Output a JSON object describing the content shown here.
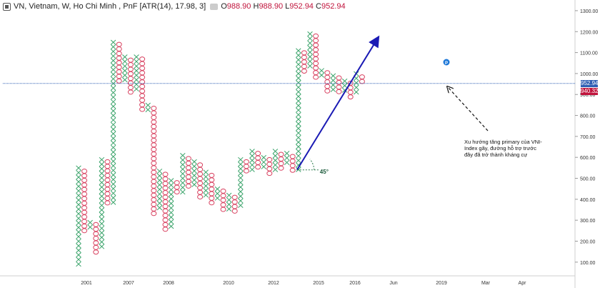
{
  "legend": {
    "symbol": "VN, Vietnam, W, Ho Chi Minh , PnF [ATR(14), 17.98, 3]",
    "open_label": "O",
    "open": "988.90",
    "high_label": "H",
    "high": "988.90",
    "low_label": "L",
    "low": "952.94",
    "close_label": "C",
    "close": "952.94"
  },
  "price_tags": {
    "last": "952.94",
    "line": "940.32"
  },
  "annotation": {
    "text_lines": [
      "Xu hướng tăng primary của VNI-",
      "Index gãy, đường hỗ trợ trước",
      "đây đã trở thành kháng cự"
    ],
    "angle_label": "45°",
    "marker_label": "P"
  },
  "colors": {
    "x_col": "#3aa36a",
    "o_col": "#d8405f",
    "trend": "#1a1ab4",
    "hline": "#2f5fb3",
    "tag_last": "#2f5fb3",
    "tag_line": "#c0143c"
  },
  "chart_data": {
    "type": "point-and-figure",
    "y_axis": {
      "ticks": [
        100,
        200,
        300,
        400,
        500,
        600,
        700,
        800,
        900,
        1000,
        1100,
        1200,
        1300
      ],
      "range": [
        55,
        1310
      ]
    },
    "x_axis": {
      "ticks": [
        "2001",
        "2007",
        "2008",
        "2010",
        "2012",
        "2015",
        "2016",
        "Jun",
        "2019",
        "Mar",
        "Apr"
      ]
    },
    "box_size": 17.98,
    "columns": [
      {
        "t": "X",
        "lo": 85,
        "hi": 560
      },
      {
        "t": "O",
        "lo": 240,
        "hi": 545
      },
      {
        "t": "X",
        "lo": 250,
        "hi": 300
      },
      {
        "t": "O",
        "lo": 140,
        "hi": 290
      },
      {
        "t": "X",
        "lo": 155,
        "hi": 600
      },
      {
        "t": "O",
        "lo": 375,
        "hi": 590
      },
      {
        "t": "X",
        "lo": 385,
        "hi": 1160
      },
      {
        "t": "O",
        "lo": 945,
        "hi": 1150
      },
      {
        "t": "X",
        "lo": 955,
        "hi": 1090
      },
      {
        "t": "O",
        "lo": 910,
        "hi": 1075
      },
      {
        "t": "X",
        "lo": 920,
        "hi": 1090
      },
      {
        "t": "O",
        "lo": 815,
        "hi": 1080
      },
      {
        "t": "X",
        "lo": 825,
        "hi": 860
      },
      {
        "t": "O",
        "lo": 330,
        "hi": 845
      },
      {
        "t": "X",
        "lo": 340,
        "hi": 545
      },
      {
        "t": "O",
        "lo": 250,
        "hi": 530
      },
      {
        "t": "X",
        "lo": 260,
        "hi": 500
      },
      {
        "t": "O",
        "lo": 420,
        "hi": 490
      },
      {
        "t": "X",
        "lo": 430,
        "hi": 620
      },
      {
        "t": "O",
        "lo": 455,
        "hi": 605
      },
      {
        "t": "X",
        "lo": 465,
        "hi": 590
      },
      {
        "t": "O",
        "lo": 390,
        "hi": 575
      },
      {
        "t": "X",
        "lo": 400,
        "hi": 540
      },
      {
        "t": "O",
        "lo": 380,
        "hi": 525
      },
      {
        "t": "X",
        "lo": 390,
        "hi": 460
      },
      {
        "t": "O",
        "lo": 340,
        "hi": 450
      },
      {
        "t": "X",
        "lo": 350,
        "hi": 430
      },
      {
        "t": "O",
        "lo": 340,
        "hi": 420
      },
      {
        "t": "X",
        "lo": 350,
        "hi": 600
      },
      {
        "t": "O",
        "lo": 530,
        "hi": 590
      },
      {
        "t": "X",
        "lo": 540,
        "hi": 640
      },
      {
        "t": "O",
        "lo": 540,
        "hi": 630
      },
      {
        "t": "X",
        "lo": 550,
        "hi": 610
      },
      {
        "t": "O",
        "lo": 520,
        "hi": 600
      },
      {
        "t": "X",
        "lo": 530,
        "hi": 640
      },
      {
        "t": "O",
        "lo": 545,
        "hi": 625
      },
      {
        "t": "X",
        "lo": 555,
        "hi": 630
      },
      {
        "t": "O",
        "lo": 520,
        "hi": 615
      },
      {
        "t": "X",
        "lo": 530,
        "hi": 1120
      },
      {
        "t": "O",
        "lo": 1010,
        "hi": 1110
      },
      {
        "t": "X",
        "lo": 1020,
        "hi": 1200
      },
      {
        "t": "O",
        "lo": 980,
        "hi": 1190
      },
      {
        "t": "X",
        "lo": 990,
        "hi": 1025
      },
      {
        "t": "O",
        "lo": 910,
        "hi": 1015
      },
      {
        "t": "X",
        "lo": 920,
        "hi": 1000
      },
      {
        "t": "O",
        "lo": 895,
        "hi": 990
      },
      {
        "t": "X",
        "lo": 905,
        "hi": 975
      },
      {
        "t": "O",
        "lo": 885,
        "hi": 965
      },
      {
        "t": "X",
        "lo": 895,
        "hi": 1010
      },
      {
        "t": "O",
        "lo": 955,
        "hi": 995
      }
    ],
    "horizontal_line": 952.94,
    "trendline": {
      "from": {
        "col": 38,
        "price": 540
      },
      "to": {
        "col": 51,
        "price": 1170
      }
    }
  }
}
